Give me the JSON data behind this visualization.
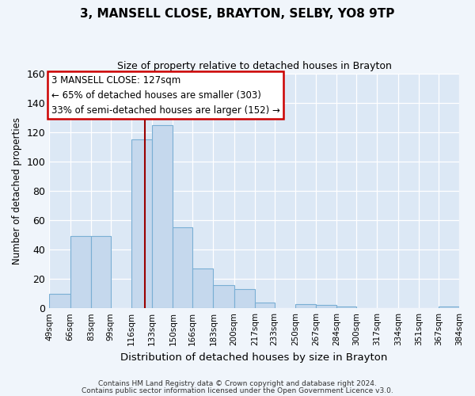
{
  "title": "3, MANSELL CLOSE, BRAYTON, SELBY, YO8 9TP",
  "subtitle": "Size of property relative to detached houses in Brayton",
  "xlabel": "Distribution of detached houses by size in Brayton",
  "ylabel": "Number of detached properties",
  "bar_color": "#c5d8ed",
  "bar_edge_color": "#7aafd4",
  "background_color": "#dce8f5",
  "fig_background": "#f0f5fb",
  "bin_edges": [
    49,
    66,
    83,
    99,
    116,
    133,
    150,
    166,
    183,
    200,
    217,
    233,
    250,
    267,
    284,
    300,
    317,
    334,
    351,
    367,
    384
  ],
  "bin_labels": [
    "49sqm",
    "66sqm",
    "83sqm",
    "99sqm",
    "116sqm",
    "133sqm",
    "150sqm",
    "166sqm",
    "183sqm",
    "200sqm",
    "217sqm",
    "233sqm",
    "250sqm",
    "267sqm",
    "284sqm",
    "300sqm",
    "317sqm",
    "334sqm",
    "351sqm",
    "367sqm",
    "384sqm"
  ],
  "counts": [
    10,
    49,
    49,
    0,
    115,
    125,
    55,
    27,
    16,
    13,
    4,
    0,
    3,
    2,
    1,
    0,
    0,
    0,
    0,
    1
  ],
  "property_value": 127,
  "vline_color": "#990000",
  "annotation_line1": "3 MANSELL CLOSE: 127sqm",
  "annotation_line2": "← 65% of detached houses are smaller (303)",
  "annotation_line3": "33% of semi-detached houses are larger (152) →",
  "annotation_box_color": "#ffffff",
  "annotation_box_edge": "#cc0000",
  "ylim": [
    0,
    160
  ],
  "yticks": [
    0,
    20,
    40,
    60,
    80,
    100,
    120,
    140,
    160
  ],
  "footer1": "Contains HM Land Registry data © Crown copyright and database right 2024.",
  "footer2": "Contains public sector information licensed under the Open Government Licence v3.0."
}
